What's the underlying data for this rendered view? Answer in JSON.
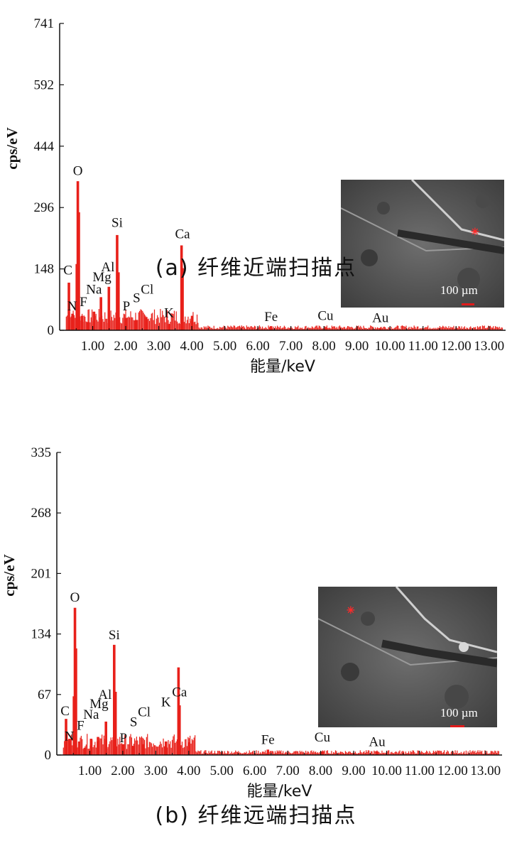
{
  "panels": [
    {
      "caption": "(a) 纤维近端扫描点",
      "sem_scale": "100 µm",
      "chart_data": {
        "type": "bar",
        "title": "",
        "xlabel": "能量/keV",
        "ylabel": "cps/eV",
        "ylim": [
          0,
          741
        ],
        "xlim": [
          0,
          13.5
        ],
        "yticks": [
          "0",
          "148",
          "296",
          "444",
          "592",
          "741"
        ],
        "xticks": [
          "1.00",
          "2.00",
          "3.00",
          "4.00",
          "5.00",
          "6.00",
          "7.00",
          "8.00",
          "9.00",
          "10.00",
          "11.00",
          "12.00",
          "13.00"
        ],
        "peaks": [
          {
            "x": 0.28,
            "y": 115
          },
          {
            "x": 0.39,
            "y": 40
          },
          {
            "x": 0.52,
            "y": 160
          },
          {
            "x": 0.55,
            "y": 360
          },
          {
            "x": 0.58,
            "y": 285
          },
          {
            "x": 0.68,
            "y": 35
          },
          {
            "x": 0.85,
            "y": 20
          },
          {
            "x": 1.04,
            "y": 45
          },
          {
            "x": 1.25,
            "y": 80
          },
          {
            "x": 1.49,
            "y": 105
          },
          {
            "x": 1.74,
            "y": 230
          },
          {
            "x": 1.78,
            "y": 140
          },
          {
            "x": 2.01,
            "y": 30
          },
          {
            "x": 2.31,
            "y": 25
          },
          {
            "x": 2.62,
            "y": 32
          },
          {
            "x": 3.31,
            "y": 15
          },
          {
            "x": 3.69,
            "y": 205
          },
          {
            "x": 3.72,
            "y": 150
          },
          {
            "x": 4.01,
            "y": 35
          },
          {
            "x": 6.4,
            "y": 10
          },
          {
            "x": 8.05,
            "y": 6
          },
          {
            "x": 9.71,
            "y": 5
          }
        ],
        "labels": [
          {
            "text": "C",
            "x": 0.25,
            "y": 135
          },
          {
            "text": "N",
            "x": 0.38,
            "y": 48
          },
          {
            "text": "O",
            "x": 0.55,
            "y": 375
          },
          {
            "text": "F",
            "x": 0.72,
            "y": 58
          },
          {
            "text": "Na",
            "x": 1.04,
            "y": 88
          },
          {
            "text": "Mg",
            "x": 1.28,
            "y": 118
          },
          {
            "text": "Al",
            "x": 1.46,
            "y": 142
          },
          {
            "text": "Si",
            "x": 1.74,
            "y": 250
          },
          {
            "text": "P",
            "x": 2.02,
            "y": 48
          },
          {
            "text": "S",
            "x": 2.33,
            "y": 68
          },
          {
            "text": "Cl",
            "x": 2.65,
            "y": 88
          },
          {
            "text": "K",
            "x": 3.31,
            "y": 32
          },
          {
            "text": "Ca",
            "x": 3.72,
            "y": 222
          },
          {
            "text": "Fe",
            "x": 6.4,
            "y": 22
          },
          {
            "text": "Cu",
            "x": 8.05,
            "y": 25
          },
          {
            "text": "Au",
            "x": 9.71,
            "y": 20
          }
        ]
      }
    },
    {
      "caption": "(b) 纤维远端扫描点",
      "sem_scale": "100 µm",
      "chart_data": {
        "type": "bar",
        "title": "",
        "xlabel": "能量/keV",
        "ylabel": "cps/eV",
        "ylim": [
          0,
          335
        ],
        "xlim": [
          0,
          13.5
        ],
        "yticks": [
          "0",
          "67",
          "134",
          "201",
          "268",
          "335"
        ],
        "xticks": [
          "1.00",
          "2.00",
          "3.00",
          "4.00",
          "5.00",
          "6.00",
          "7.00",
          "8.00",
          "9.00",
          "10.00",
          "11.00",
          "12.00",
          "13.00"
        ],
        "peaks": [
          {
            "x": 0.28,
            "y": 40
          },
          {
            "x": 0.39,
            "y": 18
          },
          {
            "x": 0.52,
            "y": 65
          },
          {
            "x": 0.55,
            "y": 163
          },
          {
            "x": 0.58,
            "y": 118
          },
          {
            "x": 0.68,
            "y": 15
          },
          {
            "x": 0.85,
            "y": 8
          },
          {
            "x": 1.04,
            "y": 18
          },
          {
            "x": 1.25,
            "y": 20
          },
          {
            "x": 1.49,
            "y": 37
          },
          {
            "x": 1.74,
            "y": 122
          },
          {
            "x": 1.78,
            "y": 70
          },
          {
            "x": 2.01,
            "y": 12
          },
          {
            "x": 2.31,
            "y": 10
          },
          {
            "x": 2.62,
            "y": 12
          },
          {
            "x": 3.31,
            "y": 15
          },
          {
            "x": 3.69,
            "y": 97
          },
          {
            "x": 3.72,
            "y": 55
          },
          {
            "x": 4.01,
            "y": 14
          },
          {
            "x": 6.4,
            "y": 6
          },
          {
            "x": 8.05,
            "y": 4
          },
          {
            "x": 9.71,
            "y": 4
          }
        ],
        "labels": [
          {
            "text": "C",
            "x": 0.25,
            "y": 44
          },
          {
            "text": "N",
            "x": 0.38,
            "y": 16
          },
          {
            "text": "O",
            "x": 0.55,
            "y": 170
          },
          {
            "text": "F",
            "x": 0.72,
            "y": 28
          },
          {
            "text": "Na",
            "x": 1.04,
            "y": 40
          },
          {
            "text": "Mg",
            "x": 1.28,
            "y": 52
          },
          {
            "text": "Al",
            "x": 1.46,
            "y": 62
          },
          {
            "text": "Si",
            "x": 1.74,
            "y": 128
          },
          {
            "text": "P",
            "x": 2.02,
            "y": 14
          },
          {
            "text": "S",
            "x": 2.33,
            "y": 32
          },
          {
            "text": "Cl",
            "x": 2.65,
            "y": 43
          },
          {
            "text": "K",
            "x": 3.31,
            "y": 54
          },
          {
            "text": "Ca",
            "x": 3.72,
            "y": 65
          },
          {
            "text": "Fe",
            "x": 6.4,
            "y": 12
          },
          {
            "text": "Cu",
            "x": 8.05,
            "y": 15
          },
          {
            "text": "Au",
            "x": 9.71,
            "y": 10
          }
        ]
      }
    }
  ],
  "colors": {
    "spectrum": "#e8201a",
    "axis": "#111111",
    "sem_bg": "#5b5b5b"
  }
}
